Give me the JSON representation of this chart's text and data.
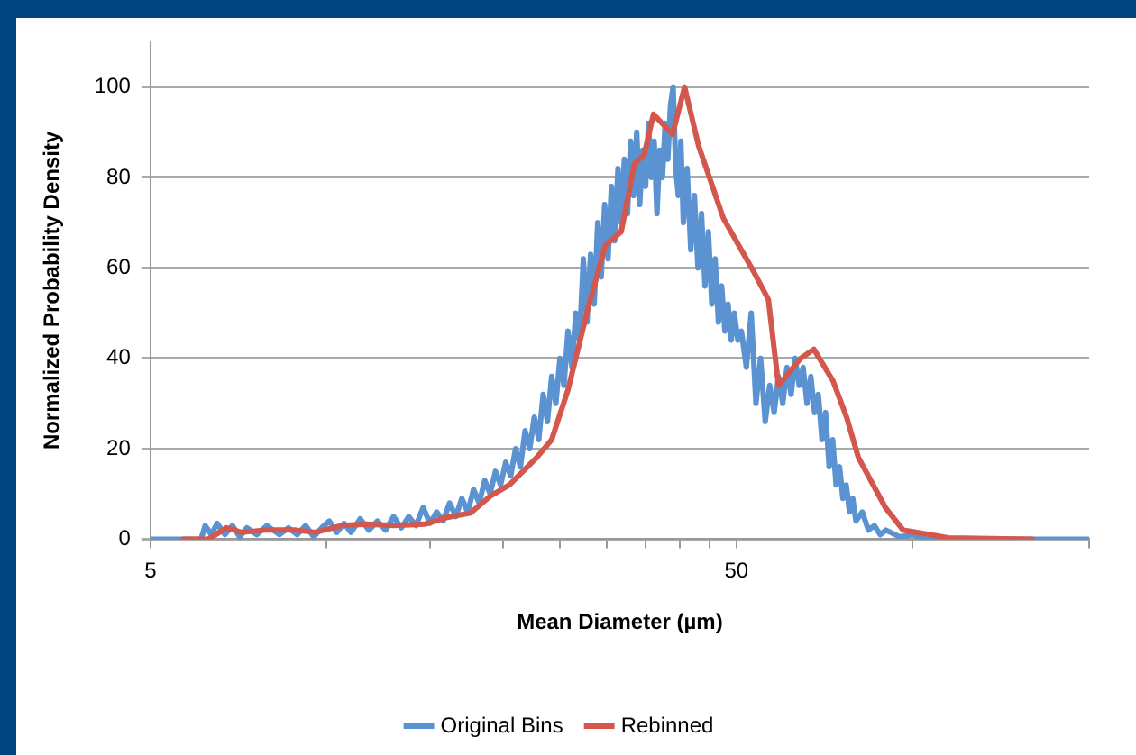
{
  "chart_data": {
    "type": "line",
    "xlabel": "Mean Diameter (µm)",
    "ylabel": "Normalized Probability Density",
    "log": "x",
    "xlim": [
      5,
      200
    ],
    "xticks": [
      5,
      {
        "value": 10,
        "label": null
      },
      {
        "value": 15,
        "label": null
      },
      {
        "value": 20,
        "label": null
      },
      {
        "value": 25,
        "label": null
      },
      {
        "value": 30,
        "label": null
      },
      {
        "value": 35,
        "label": null
      },
      {
        "value": 40,
        "label": null
      },
      {
        "value": 45,
        "label": null
      },
      50,
      {
        "value": 100,
        "label": null
      },
      {
        "value": 200,
        "label": null
      }
    ],
    "ylim": [
      0,
      110
    ],
    "yticks": [
      0,
      20,
      40,
      60,
      80,
      100
    ],
    "grid": "y",
    "legend": "bottom",
    "marker": "none",
    "line_style": "solid",
    "series": [
      {
        "name": "Original Bins",
        "color": "#5a92d2",
        "x": [
          5,
          6.1,
          6.2,
          6.35,
          6.5,
          6.7,
          6.9,
          7.1,
          7.3,
          7.6,
          7.9,
          8.3,
          8.6,
          8.9,
          9.2,
          9.5,
          9.8,
          10.1,
          10.4,
          10.7,
          11.0,
          11.4,
          11.8,
          12.2,
          12.6,
          13.0,
          13.4,
          13.8,
          14.2,
          14.6,
          15.0,
          15.4,
          15.8,
          16.2,
          16.6,
          17.0,
          17.4,
          17.8,
          18.2,
          18.6,
          19.0,
          19.4,
          19.8,
          20.2,
          20.6,
          21.0,
          21.4,
          21.8,
          22.2,
          22.6,
          23.0,
          23.4,
          23.8,
          24.2,
          24.6,
          25.0,
          25.4,
          25.8,
          26.2,
          26.6,
          27.0,
          27.4,
          27.8,
          28.2,
          28.6,
          29.0,
          29.4,
          29.8,
          30.2,
          30.6,
          31.0,
          31.4,
          31.8,
          32.2,
          32.6,
          33.0,
          33.4,
          33.8,
          34.2,
          34.6,
          35.0,
          35.4,
          35.8,
          36.2,
          36.6,
          37.0,
          37.4,
          37.8,
          38.2,
          38.6,
          39.0,
          39.4,
          39.8,
          40.2,
          40.6,
          41.2,
          41.8,
          42.4,
          43.0,
          43.6,
          44.2,
          44.8,
          45.4,
          46.0,
          46.6,
          47.2,
          47.8,
          48.4,
          49.0,
          49.6,
          50.3,
          51,
          52,
          53,
          54,
          55,
          56,
          57,
          58,
          59,
          60,
          61,
          62,
          63,
          64,
          65,
          66,
          67,
          68,
          69,
          70,
          71,
          72,
          73,
          74,
          75,
          76,
          77,
          78,
          79,
          80,
          82,
          84,
          86,
          88,
          90,
          95,
          100,
          105,
          200
        ],
        "values": [
          0,
          0,
          3,
          1,
          3.5,
          1,
          3,
          0.5,
          2.5,
          1,
          3,
          1,
          2.5,
          1,
          3,
          0.5,
          2.5,
          4,
          1.5,
          3.5,
          1.5,
          4.5,
          2,
          4,
          2,
          5,
          2.5,
          5,
          3,
          7,
          3.5,
          6,
          4,
          8,
          5,
          9,
          6,
          11,
          8,
          13,
          10,
          15,
          12,
          17,
          14,
          20,
          16,
          24,
          20,
          27,
          22,
          32,
          26,
          36,
          30,
          40,
          34,
          46,
          38,
          50,
          44,
          62,
          48,
          63,
          52,
          70,
          58,
          74,
          62,
          78,
          66,
          82,
          70,
          84,
          72,
          88,
          76,
          90,
          74,
          86,
          78,
          92,
          80,
          88,
          72,
          86,
          80,
          92,
          84,
          96,
          100,
          82,
          76,
          88,
          70,
          82,
          64,
          76,
          60,
          72,
          56,
          68,
          52,
          62,
          48,
          56,
          46,
          52,
          44,
          50,
          44,
          46,
          38,
          50,
          30,
          40,
          26,
          34,
          28,
          36,
          30,
          38,
          32,
          40,
          34,
          38,
          30,
          36,
          28,
          32,
          22,
          28,
          16,
          22,
          12,
          16,
          9,
          12,
          6,
          9,
          4,
          6,
          2,
          3,
          1,
          2,
          0.5,
          1,
          0,
          0
        ]
      },
      {
        "name": "Rebinned",
        "color": "#d4574e",
        "x": [
          5.69,
          6.28,
          6.74,
          7.15,
          7.84,
          8.85,
          9.56,
          10.6,
          11.7,
          13.0,
          14.7,
          15.9,
          17.6,
          19.0,
          20.5,
          22.8,
          24.2,
          25.8,
          27.9,
          29.9,
          31.8,
          33.5,
          34.8,
          36.1,
          38.9,
          40.8,
          43.1,
          47.5,
          53.6,
          56.7,
          59.0,
          64.4,
          67.8,
          73.1,
          77.1,
          80.8,
          89.8,
          96.3,
          115,
          160
        ],
        "values": [
          0,
          0,
          2.5,
          1.5,
          2,
          2,
          1.5,
          3,
          3.3,
          3,
          3.3,
          4.7,
          5.8,
          9.5,
          12,
          18,
          22,
          33,
          51,
          65,
          68,
          83,
          85,
          94,
          89.5,
          100,
          87,
          71,
          59,
          53,
          34,
          40,
          42,
          35,
          27,
          18,
          7,
          2,
          0.3,
          0
        ]
      }
    ]
  }
}
